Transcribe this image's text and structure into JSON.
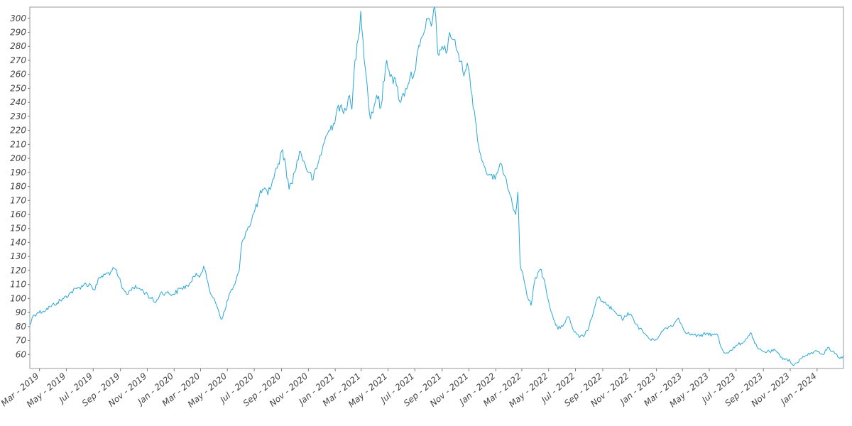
{
  "chart_data": {
    "type": "line",
    "title": "",
    "xlabel": "",
    "ylabel": "",
    "xlim": [
      "2019-02-07",
      "2024-03-01"
    ],
    "ylim": [
      50,
      308
    ],
    "y_ticks": [
      60,
      70,
      80,
      90,
      100,
      110,
      120,
      130,
      140,
      150,
      160,
      170,
      180,
      190,
      200,
      210,
      220,
      230,
      240,
      250,
      260,
      270,
      280,
      290,
      300
    ],
    "x_ticks": [
      {
        "date": "2019-03-01",
        "label": "Mar - 2019"
      },
      {
        "date": "2019-05-01",
        "label": "May - 2019"
      },
      {
        "date": "2019-07-01",
        "label": "Jul - 2019"
      },
      {
        "date": "2019-09-01",
        "label": "Sep - 2019"
      },
      {
        "date": "2019-11-01",
        "label": "Nov - 2019"
      },
      {
        "date": "2020-01-01",
        "label": "Jan - 2020"
      },
      {
        "date": "2020-03-01",
        "label": "Mar - 2020"
      },
      {
        "date": "2020-05-01",
        "label": "May - 2020"
      },
      {
        "date": "2020-07-01",
        "label": "Jul - 2020"
      },
      {
        "date": "2020-09-01",
        "label": "Sep - 2020"
      },
      {
        "date": "2020-11-01",
        "label": "Nov - 2020"
      },
      {
        "date": "2021-01-01",
        "label": "Jan - 2021"
      },
      {
        "date": "2021-03-01",
        "label": "Mar - 2021"
      },
      {
        "date": "2021-05-01",
        "label": "May - 2021"
      },
      {
        "date": "2021-07-01",
        "label": "Jul - 2021"
      },
      {
        "date": "2021-09-01",
        "label": "Sep - 2021"
      },
      {
        "date": "2021-11-01",
        "label": "Nov - 2021"
      },
      {
        "date": "2022-01-01",
        "label": "Jan - 2022"
      },
      {
        "date": "2022-03-01",
        "label": "Mar - 2022"
      },
      {
        "date": "2022-05-01",
        "label": "May - 2022"
      },
      {
        "date": "2022-07-01",
        "label": "Jul - 2022"
      },
      {
        "date": "2022-09-01",
        "label": "Sep - 2022"
      },
      {
        "date": "2022-11-01",
        "label": "Nov - 2022"
      },
      {
        "date": "2023-01-01",
        "label": "Jan - 2023"
      },
      {
        "date": "2023-03-01",
        "label": "Mar - 2023"
      },
      {
        "date": "2023-05-01",
        "label": "May - 2023"
      },
      {
        "date": "2023-07-01",
        "label": "Jul - 2023"
      },
      {
        "date": "2023-09-01",
        "label": "Sep - 2023"
      },
      {
        "date": "2023-11-01",
        "label": "Nov - 2023"
      },
      {
        "date": "2024-01-01",
        "label": "Jan - 2024"
      }
    ],
    "grid": false,
    "legend": "none",
    "series": [
      {
        "color": "#29a8d8",
        "points": [
          [
            "2019-02-07",
            81
          ],
          [
            "2019-02-15",
            88
          ],
          [
            "2019-02-25",
            90
          ],
          [
            "2019-03-10",
            91
          ],
          [
            "2019-03-25",
            94
          ],
          [
            "2019-04-10",
            97
          ],
          [
            "2019-04-25",
            100
          ],
          [
            "2019-05-10",
            104
          ],
          [
            "2019-05-25",
            107
          ],
          [
            "2019-06-10",
            110
          ],
          [
            "2019-06-25",
            110
          ],
          [
            "2019-07-05",
            106
          ],
          [
            "2019-07-15",
            115
          ],
          [
            "2019-07-28",
            117
          ],
          [
            "2019-08-10",
            119
          ],
          [
            "2019-08-20",
            121
          ],
          [
            "2019-08-28",
            115
          ],
          [
            "2019-09-05",
            107
          ],
          [
            "2019-09-15",
            103
          ],
          [
            "2019-09-28",
            108
          ],
          [
            "2019-10-15",
            107
          ],
          [
            "2019-10-28",
            104
          ],
          [
            "2019-11-10",
            100
          ],
          [
            "2019-11-20",
            97
          ],
          [
            "2019-12-01",
            104
          ],
          [
            "2019-12-15",
            104
          ],
          [
            "2019-12-31",
            103
          ],
          [
            "2020-01-15",
            107
          ],
          [
            "2020-01-31",
            109
          ],
          [
            "2020-02-10",
            112
          ],
          [
            "2020-02-20",
            118
          ],
          [
            "2020-03-01",
            117
          ],
          [
            "2020-03-08",
            123
          ],
          [
            "2020-03-15",
            114
          ],
          [
            "2020-03-23",
            104
          ],
          [
            "2020-04-01",
            100
          ],
          [
            "2020-04-10",
            92
          ],
          [
            "2020-04-18",
            85
          ],
          [
            "2020-04-25",
            91
          ],
          [
            "2020-05-05",
            103
          ],
          [
            "2020-05-18",
            110
          ],
          [
            "2020-05-28",
            120
          ],
          [
            "2020-06-03",
            140
          ],
          [
            "2020-06-12",
            148
          ],
          [
            "2020-06-25",
            156
          ],
          [
            "2020-07-10",
            170
          ],
          [
            "2020-07-20",
            178
          ],
          [
            "2020-08-01",
            174
          ],
          [
            "2020-08-12",
            185
          ],
          [
            "2020-08-22",
            193
          ],
          [
            "2020-09-01",
            205
          ],
          [
            "2020-09-08",
            200
          ],
          [
            "2020-09-18",
            178
          ],
          [
            "2020-10-01",
            190
          ],
          [
            "2020-10-12",
            205
          ],
          [
            "2020-10-22",
            198
          ],
          [
            "2020-11-01",
            190
          ],
          [
            "2020-11-12",
            185
          ],
          [
            "2020-11-22",
            195
          ],
          [
            "2020-12-05",
            210
          ],
          [
            "2020-12-15",
            218
          ],
          [
            "2020-12-28",
            225
          ],
          [
            "2021-01-08",
            238
          ],
          [
            "2021-01-20",
            232
          ],
          [
            "2021-01-31",
            244
          ],
          [
            "2021-02-08",
            235
          ],
          [
            "2021-02-15",
            270
          ],
          [
            "2021-02-22",
            285
          ],
          [
            "2021-02-28",
            305
          ],
          [
            "2021-03-05",
            285
          ],
          [
            "2021-03-12",
            260
          ],
          [
            "2021-03-22",
            228
          ],
          [
            "2021-04-05",
            245
          ],
          [
            "2021-04-15",
            237
          ],
          [
            "2021-04-28",
            270
          ],
          [
            "2021-05-08",
            260
          ],
          [
            "2021-05-20",
            252
          ],
          [
            "2021-05-30",
            240
          ],
          [
            "2021-06-10",
            250
          ],
          [
            "2021-06-20",
            258
          ],
          [
            "2021-06-30",
            262
          ],
          [
            "2021-07-12",
            280
          ],
          [
            "2021-07-22",
            290
          ],
          [
            "2021-08-02",
            300
          ],
          [
            "2021-08-10",
            298
          ],
          [
            "2021-08-15",
            308
          ],
          [
            "2021-08-22",
            275
          ],
          [
            "2021-09-01",
            280
          ],
          [
            "2021-09-10",
            275
          ],
          [
            "2021-09-18",
            290
          ],
          [
            "2021-09-25",
            285
          ],
          [
            "2021-10-08",
            275
          ],
          [
            "2021-10-18",
            262
          ],
          [
            "2021-10-28",
            268
          ],
          [
            "2021-11-08",
            245
          ],
          [
            "2021-11-18",
            222
          ],
          [
            "2021-11-25",
            205
          ],
          [
            "2021-12-05",
            195
          ],
          [
            "2021-12-15",
            188
          ],
          [
            "2021-12-25",
            185
          ],
          [
            "2022-01-05",
            190
          ],
          [
            "2022-01-15",
            195
          ],
          [
            "2022-01-25",
            185
          ],
          [
            "2022-02-05",
            172
          ],
          [
            "2022-02-15",
            160
          ],
          [
            "2022-02-20",
            176
          ],
          [
            "2022-02-25",
            125
          ],
          [
            "2022-03-05",
            115
          ],
          [
            "2022-03-15",
            100
          ],
          [
            "2022-03-22",
            95
          ],
          [
            "2022-04-01",
            115
          ],
          [
            "2022-04-12",
            121
          ],
          [
            "2022-04-22",
            112
          ],
          [
            "2022-05-01",
            98
          ],
          [
            "2022-05-12",
            85
          ],
          [
            "2022-05-22",
            78
          ],
          [
            "2022-06-05",
            82
          ],
          [
            "2022-06-15",
            87
          ],
          [
            "2022-06-28",
            76
          ],
          [
            "2022-07-10",
            72
          ],
          [
            "2022-07-22",
            74
          ],
          [
            "2022-08-01",
            80
          ],
          [
            "2022-08-12",
            92
          ],
          [
            "2022-08-22",
            101
          ],
          [
            "2022-09-01",
            98
          ],
          [
            "2022-09-12",
            95
          ],
          [
            "2022-09-22",
            92
          ],
          [
            "2022-10-05",
            88
          ],
          [
            "2022-10-18",
            85
          ],
          [
            "2022-10-28",
            90
          ],
          [
            "2022-11-10",
            85
          ],
          [
            "2022-11-20",
            80
          ],
          [
            "2022-12-05",
            75
          ],
          [
            "2022-12-20",
            70
          ],
          [
            "2023-01-05",
            72
          ],
          [
            "2023-01-18",
            78
          ],
          [
            "2023-01-31",
            80
          ],
          [
            "2023-02-10",
            82
          ],
          [
            "2023-02-20",
            86
          ],
          [
            "2023-03-01",
            80
          ],
          [
            "2023-03-12",
            75
          ],
          [
            "2023-03-25",
            74
          ],
          [
            "2023-04-10",
            73
          ],
          [
            "2023-04-25",
            75
          ],
          [
            "2023-05-10",
            74
          ],
          [
            "2023-05-20",
            74
          ],
          [
            "2023-05-28",
            65
          ],
          [
            "2023-06-05",
            61
          ],
          [
            "2023-06-20",
            63
          ],
          [
            "2023-07-05",
            67
          ],
          [
            "2023-07-18",
            69
          ],
          [
            "2023-07-28",
            73
          ],
          [
            "2023-08-05",
            75
          ],
          [
            "2023-08-12",
            68
          ],
          [
            "2023-08-20",
            64
          ],
          [
            "2023-09-01",
            62
          ],
          [
            "2023-09-15",
            62
          ],
          [
            "2023-09-28",
            63
          ],
          [
            "2023-10-10",
            58
          ],
          [
            "2023-10-22",
            57
          ],
          [
            "2023-11-01",
            55
          ],
          [
            "2023-11-08",
            52
          ],
          [
            "2023-11-15",
            54
          ],
          [
            "2023-11-25",
            57
          ],
          [
            "2023-12-05",
            59
          ],
          [
            "2023-12-15",
            60
          ],
          [
            "2023-12-25",
            62
          ],
          [
            "2024-01-05",
            62
          ],
          [
            "2024-01-15",
            60
          ],
          [
            "2024-01-25",
            65
          ],
          [
            "2024-02-05",
            62
          ],
          [
            "2024-02-15",
            60
          ],
          [
            "2024-02-22",
            57
          ],
          [
            "2024-03-01",
            59
          ]
        ]
      }
    ]
  }
}
